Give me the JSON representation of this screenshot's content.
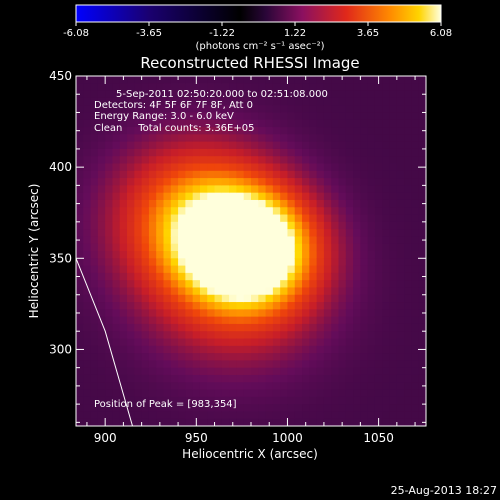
{
  "colorbar": {
    "ticks": [
      "-6.08",
      "-3.65",
      "-1.22",
      "1.22",
      "3.65",
      "6.08"
    ],
    "unit_label": "(photons cm⁻² s⁻¹ asec⁻²)",
    "colors": [
      "#0000ff",
      "#000000",
      "#3a0a5c",
      "#8b1060",
      "#d42a1c",
      "#ff7a00",
      "#ffd700",
      "#ffffe0"
    ]
  },
  "plot": {
    "title": "Reconstructed RHESSI Image",
    "info_lines": [
      "5-Sep-2011 02:50:20.000 to 02:51:08.000",
      "Detectors: 4F 5F 6F 7F 8F, Att 0",
      "Energy Range: 3.0 - 6.0 keV",
      "Clean     Total counts: 3.36E+05"
    ],
    "peak_label": "Position of Peak = [983,354]",
    "timestamp": "25-Aug-2013 18:27"
  },
  "chart_data": {
    "type": "heatmap",
    "title": "Reconstructed RHESSI Image",
    "xlabel": "Heliocentric X (arcsec)",
    "ylabel": "Heliocentric Y (arcsec)",
    "xlim": [
      884,
      1076
    ],
    "ylim": [
      258,
      450
    ],
    "x_ticks": [
      900,
      950,
      1000,
      1050
    ],
    "y_ticks": [
      300,
      350,
      400,
      450
    ],
    "color_range": [
      -6.08,
      6.08
    ],
    "peak": [
      983,
      354
    ],
    "sources": [
      {
        "x": 980,
        "y": 355,
        "sx": 24,
        "sy": 22,
        "amp": 6.08
      },
      {
        "x": 950,
        "y": 372,
        "sx": 30,
        "sy": 28,
        "amp": 3.9
      },
      {
        "x": 972,
        "y": 330,
        "sx": 34,
        "sy": 30,
        "amp": 1.8
      }
    ],
    "limb_curve": [
      [
        884,
        350
      ],
      [
        900,
        310
      ],
      [
        915,
        258
      ]
    ]
  }
}
